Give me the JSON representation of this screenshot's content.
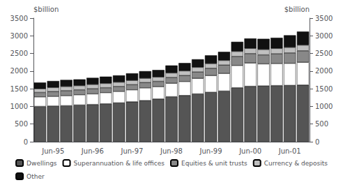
{
  "chart_data": {
    "type": "bar",
    "stacked": true,
    "categories": [
      null,
      "Jun-95",
      null,
      null,
      "Jun-96",
      null,
      null,
      "Jun-97",
      null,
      null,
      "Jun-98",
      null,
      null,
      "Jun-99",
      null,
      null,
      "Jun-00",
      null,
      null,
      "Jun-01",
      null
    ],
    "series": [
      {
        "name": "Dwellings",
        "color": "#555555",
        "values": [
          1000,
          1010,
          1020,
          1040,
          1055,
          1075,
          1100,
          1130,
          1165,
          1210,
          1275,
          1310,
          1355,
          1400,
          1435,
          1530,
          1570,
          1580,
          1590,
          1595,
          1605
        ]
      },
      {
        "name": "Superannuation & life offices",
        "color": "#ffffff",
        "values": [
          270,
          275,
          285,
          290,
          300,
          315,
          325,
          340,
          360,
          350,
          380,
          395,
          440,
          475,
          500,
          630,
          660,
          625,
          625,
          625,
          645
        ]
      },
      {
        "name": "Equities & unit trusts",
        "color": "#888888",
        "values": [
          125,
          135,
          140,
          140,
          145,
          140,
          140,
          145,
          150,
          150,
          165,
          170,
          180,
          205,
          235,
          255,
          265,
          255,
          275,
          295,
          325
        ]
      },
      {
        "name": "Currency & deposits",
        "color": "#c0c0c0",
        "values": [
          105,
          115,
          118,
          118,
          122,
          122,
          122,
          122,
          122,
          122,
          128,
          132,
          133,
          133,
          133,
          143,
          148,
          152,
          152,
          157,
          162
        ]
      },
      {
        "name": "Other",
        "color": "#111111",
        "values": [
          175,
          185,
          188,
          178,
          188,
          192,
          192,
          200,
          202,
          200,
          212,
          222,
          227,
          233,
          243,
          272,
          282,
          302,
          302,
          343,
          383
        ]
      }
    ],
    "ylabel": "$billion",
    "y2label": "$billion",
    "ylim": [
      0,
      3500
    ],
    "yticks": [
      0,
      500,
      1000,
      1500,
      2000,
      2500,
      3000,
      3500
    ],
    "y2lim": [
      0,
      3500
    ],
    "y2ticks": [
      0,
      500,
      1000,
      1500,
      2000,
      2500,
      3000,
      3500
    ],
    "grid": false,
    "legend": "bottom"
  }
}
